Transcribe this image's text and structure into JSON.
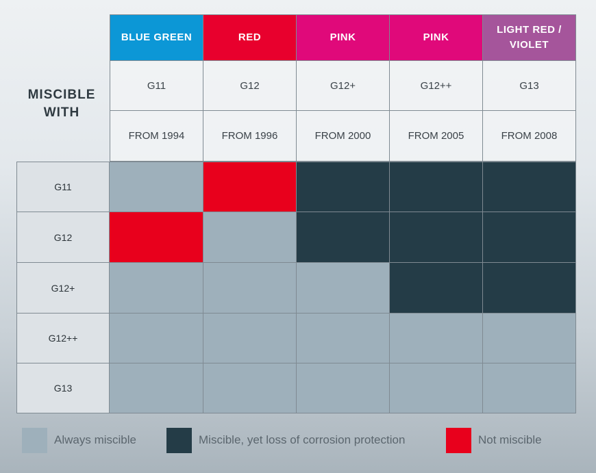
{
  "chart_data": {
    "type": "table",
    "title": "MISCIBLE WITH",
    "columns": [
      {
        "color_name": "BLUE GREEN",
        "color": "#0c97d6",
        "type": "G11",
        "year": "FROM 1994"
      },
      {
        "color_name": "RED",
        "color": "#e8002d",
        "type": "G12",
        "year": "FROM 1996"
      },
      {
        "color_name": "PINK",
        "color": "#e0097a",
        "type": "G12+",
        "year": "FROM 2000"
      },
      {
        "color_name": "PINK",
        "color": "#e0097a",
        "type": "G12++",
        "year": "FROM 2005"
      },
      {
        "color_name": "LIGHT RED / VIOLET",
        "color": "#a5559b",
        "type": "G13",
        "year": "FROM 2008"
      }
    ],
    "rows": [
      "G11",
      "G12",
      "G12+",
      "G12++",
      "G13"
    ],
    "matrix": [
      [
        "always",
        "not",
        "loss",
        "loss",
        "loss"
      ],
      [
        "not",
        "always",
        "loss",
        "loss",
        "loss"
      ],
      [
        "always",
        "always",
        "always",
        "loss",
        "loss"
      ],
      [
        "always",
        "always",
        "always",
        "always",
        "always"
      ],
      [
        "always",
        "always",
        "always",
        "always",
        "always"
      ]
    ],
    "legend": [
      {
        "key": "always",
        "label": "Always miscible",
        "color": "#9eb0bb"
      },
      {
        "key": "loss",
        "label": "Miscible, yet loss of corrosion protection",
        "color": "#243c47"
      },
      {
        "key": "not",
        "label": "Not miscible",
        "color": "#e8001c"
      }
    ]
  }
}
